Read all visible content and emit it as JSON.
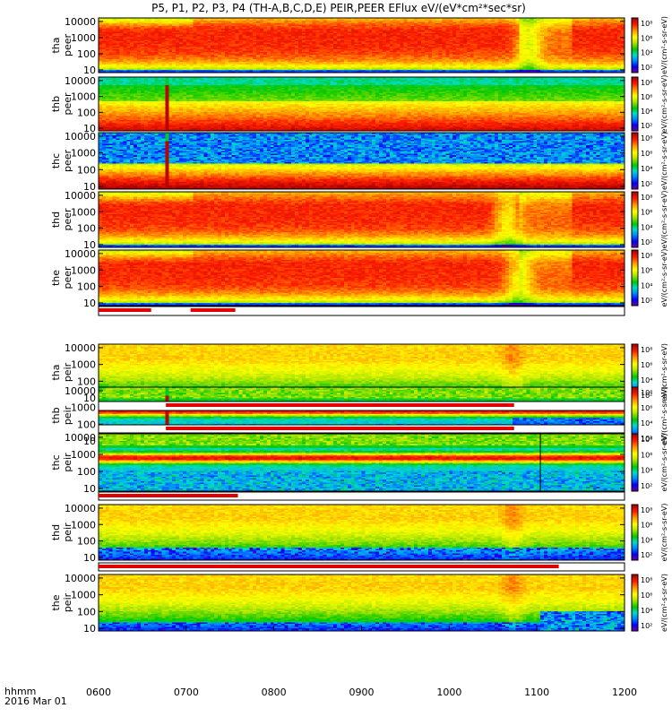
{
  "chart_data": {
    "type": "heatmap",
    "title": "P5, P1, P2, P3, P4 (TH-A,B,C,D,E) PEIR,PEER EFlux eV/(eV*cm²*sec*sr)",
    "x_axis": {
      "start": "0600",
      "end": "1200",
      "ticks": [
        "0600",
        "0700",
        "0800",
        "0900",
        "1000",
        "1100",
        "1200"
      ],
      "label_line1": "hhmm",
      "label_line2": "2016 Mar 01"
    },
    "y_axis_scale": "log",
    "y_ticks": [
      "10",
      "100",
      "1000",
      "10000"
    ],
    "colorbar": {
      "scale": "log",
      "ticks": [
        "10²",
        "10⁴",
        "10⁶",
        "10⁸"
      ],
      "label": "eV/(cm²-s-sr-eV)",
      "colors": [
        "#7a00a8",
        "#0000ff",
        "#00a0ff",
        "#00e0c0",
        "#00d000",
        "#c8e800",
        "#ffff00",
        "#ffa000",
        "#ff2000",
        "#b00000"
      ]
    },
    "panels": [
      {
        "probe": "tha",
        "species": "peer",
        "label_line1": "tha",
        "label_line2": "peer",
        "profile": "peer",
        "dip_frac": 0.82,
        "dip_low_frac": 0.8,
        "spike_frac": null,
        "noise_floor": 0.03
      },
      {
        "probe": "thb",
        "species": "peer",
        "label_line1": "thb",
        "label_line2": "peer",
        "profile": "flat",
        "spike_frac": 0.128,
        "noise_floor": 0.0
      },
      {
        "probe": "thc",
        "species": "peer",
        "label_line1": "thc",
        "label_line2": "peer",
        "profile": "flat_noisy",
        "spike_frac": 0.128,
        "noise_floor": 0.0
      },
      {
        "probe": "thd",
        "species": "peer",
        "label_line1": "thd",
        "label_line2": "peer",
        "profile": "peer",
        "dip_frac": 0.78,
        "dip_low_frac": 0.76,
        "spike_frac": null,
        "noise_floor": 0.0
      },
      {
        "probe": "the",
        "species": "peer",
        "label_line1": "the",
        "label_line2": "peer",
        "profile": "peer",
        "dip_frac": 0.8,
        "dip_low_frac": 0.77,
        "spike_frac": null,
        "noise_floor": 0.0
      },
      {
        "probe": "tha",
        "species": "peir",
        "label_line1": "tha",
        "label_line2": "peir",
        "profile": "peir",
        "dip_frac": 0.79,
        "spike_frac": null,
        "noise_floor": 0.25
      },
      {
        "probe": "thb",
        "species": "peir",
        "label_line1": "thb",
        "label_line2": "peir",
        "profile": "peir_band",
        "spike_frac": 0.128,
        "noise_floor": 0.35,
        "noise_end_frac": 0.79
      },
      {
        "probe": "thc",
        "species": "peir",
        "label_line1": "thc",
        "label_line2": "peir",
        "profile": "peir_band",
        "spike_frac": null,
        "noise_floor": 0.35,
        "line_frac": 0.84
      },
      {
        "probe": "thd",
        "species": "peir",
        "label_line1": "thd",
        "label_line2": "peir",
        "profile": "peir",
        "dip_frac": 0.79,
        "spike_frac": null,
        "noise_floor": 0.22
      },
      {
        "probe": "the",
        "species": "peir",
        "label_line1": "the",
        "label_line2": "peir",
        "profile": "peir",
        "dip_frac": 0.79,
        "spike_frac": null,
        "noise_floor": 0.15,
        "noise_late_frac": 0.84
      }
    ],
    "mode_bars": [
      {
        "after_panel": 4,
        "segments": [
          [
            0.0,
            0.1
          ],
          [
            0.175,
            0.26
          ]
        ]
      },
      {
        "after_panel": 5,
        "segments": [
          [
            0.128,
            0.79
          ]
        ]
      },
      {
        "after_panel": 6,
        "segments": [
          [
            0.128,
            0.79
          ]
        ]
      },
      {
        "after_panel": 7,
        "segments": [
          [
            0.0,
            0.265
          ]
        ]
      },
      {
        "after_panel": 8,
        "segments": [
          [
            0.0,
            0.875
          ]
        ]
      }
    ]
  }
}
